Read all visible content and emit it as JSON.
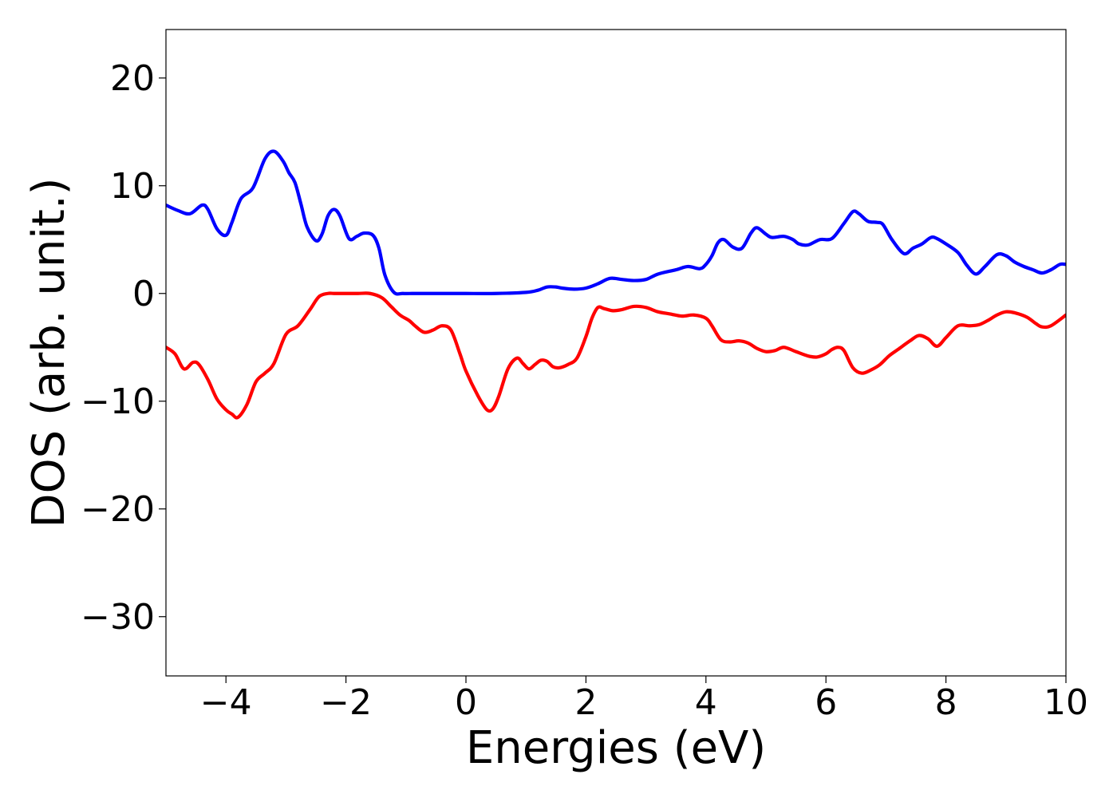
{
  "chart_data": {
    "type": "line",
    "xlabel": "Energies (eV)",
    "ylabel": "DOS (arb. unit.)",
    "xlim": [
      -5,
      10
    ],
    "ylim": [
      -35.5,
      24.5
    ],
    "xticks": [
      -4,
      -2,
      0,
      2,
      4,
      6,
      8,
      10
    ],
    "xtick_labels": [
      "−4",
      "−2",
      "0",
      "2",
      "4",
      "6",
      "8",
      "10"
    ],
    "yticks": [
      20,
      10,
      0,
      -10,
      -20,
      -30
    ],
    "ytick_labels": [
      "20",
      "10",
      "0",
      "−10",
      "−20",
      "−30"
    ],
    "grid": false,
    "legend": "none",
    "series": [
      {
        "color": "#0000ff",
        "x": [
          -5.0,
          -4.8,
          -4.6,
          -4.4,
          -4.3,
          -4.15,
          -4.0,
          -3.9,
          -3.75,
          -3.55,
          -3.35,
          -3.2,
          -3.05,
          -2.95,
          -2.85,
          -2.75,
          -2.65,
          -2.5,
          -2.4,
          -2.3,
          -2.2,
          -2.1,
          -1.95,
          -1.82,
          -1.7,
          -1.55,
          -1.45,
          -1.35,
          -1.2,
          -1.05,
          -0.9,
          -0.8,
          -0.65,
          -0.5,
          -0.35,
          -0.2,
          0.0,
          0.5,
          1.0,
          1.2,
          1.35,
          1.5,
          1.6,
          1.8,
          2.0,
          2.2,
          2.4,
          2.6,
          2.8,
          3.0,
          3.2,
          3.5,
          3.7,
          3.9,
          4.0,
          4.1,
          4.2,
          4.3,
          4.45,
          4.6,
          4.75,
          4.85,
          5.0,
          5.1,
          5.3,
          5.45,
          5.55,
          5.7,
          5.9,
          6.1,
          6.3,
          6.45,
          6.55,
          6.7,
          6.85,
          6.95,
          7.1,
          7.3,
          7.45,
          7.6,
          7.75,
          7.85,
          8.0,
          8.2,
          8.35,
          8.5,
          8.65,
          8.85,
          9.0,
          9.15,
          9.3,
          9.45,
          9.6,
          9.75,
          9.9,
          10.0
        ],
        "y": [
          8.2,
          7.7,
          7.4,
          8.2,
          7.8,
          6.0,
          5.4,
          6.6,
          8.8,
          9.8,
          12.5,
          13.2,
          12.3,
          11.2,
          10.3,
          8.3,
          6.2,
          4.9,
          5.5,
          7.2,
          7.8,
          7.2,
          5.1,
          5.3,
          5.6,
          5.4,
          4.2,
          1.7,
          0.1,
          0.0,
          0.0,
          0.0,
          0.0,
          0.0,
          0.0,
          0.0,
          0.0,
          0.0,
          0.1,
          0.3,
          0.6,
          0.6,
          0.5,
          0.4,
          0.5,
          0.9,
          1.4,
          1.3,
          1.2,
          1.3,
          1.8,
          2.2,
          2.5,
          2.3,
          2.7,
          3.5,
          4.7,
          5.0,
          4.3,
          4.2,
          5.6,
          6.1,
          5.5,
          5.2,
          5.3,
          5.0,
          4.6,
          4.5,
          5.0,
          5.1,
          6.5,
          7.6,
          7.4,
          6.7,
          6.6,
          6.4,
          5.0,
          3.7,
          4.2,
          4.6,
          5.2,
          5.1,
          4.6,
          3.8,
          2.6,
          1.8,
          2.5,
          3.6,
          3.5,
          2.9,
          2.5,
          2.2,
          1.9,
          2.2,
          2.7,
          2.7
        ]
      },
      {
        "color": "#ff0000",
        "x": [
          -5.0,
          -4.85,
          -4.7,
          -4.55,
          -4.45,
          -4.3,
          -4.15,
          -4.0,
          -3.9,
          -3.8,
          -3.65,
          -3.5,
          -3.35,
          -3.2,
          -3.0,
          -2.8,
          -2.6,
          -2.45,
          -2.3,
          -2.2,
          -2.0,
          -1.8,
          -1.6,
          -1.4,
          -1.25,
          -1.1,
          -0.95,
          -0.85,
          -0.7,
          -0.55,
          -0.4,
          -0.25,
          -0.1,
          0.0,
          0.2,
          0.35,
          0.45,
          0.55,
          0.7,
          0.85,
          0.95,
          1.05,
          1.15,
          1.25,
          1.35,
          1.45,
          1.55,
          1.7,
          1.85,
          2.0,
          2.1,
          2.2,
          2.3,
          2.45,
          2.6,
          2.8,
          3.0,
          3.2,
          3.4,
          3.6,
          3.8,
          4.0,
          4.1,
          4.25,
          4.4,
          4.55,
          4.7,
          4.85,
          5.0,
          5.15,
          5.3,
          5.5,
          5.7,
          5.85,
          6.0,
          6.1,
          6.2,
          6.3,
          6.45,
          6.6,
          6.75,
          6.9,
          7.05,
          7.2,
          7.4,
          7.55,
          7.7,
          7.85,
          8.0,
          8.2,
          8.4,
          8.55,
          8.7,
          8.85,
          9.0,
          9.15,
          9.35,
          9.5,
          9.6,
          9.75,
          10.0
        ],
        "y": [
          -5.0,
          -5.6,
          -7.0,
          -6.4,
          -6.6,
          -8.0,
          -9.8,
          -10.8,
          -11.2,
          -11.5,
          -10.3,
          -8.2,
          -7.4,
          -6.5,
          -3.8,
          -3.0,
          -1.5,
          -0.3,
          0.0,
          0.0,
          0.0,
          0.0,
          0.0,
          -0.4,
          -1.2,
          -2.0,
          -2.5,
          -3.0,
          -3.6,
          -3.4,
          -3.0,
          -3.4,
          -5.6,
          -7.2,
          -9.5,
          -10.8,
          -10.7,
          -9.5,
          -7.0,
          -6.0,
          -6.5,
          -7.0,
          -6.6,
          -6.2,
          -6.3,
          -6.8,
          -6.9,
          -6.6,
          -6.0,
          -4.0,
          -2.3,
          -1.3,
          -1.4,
          -1.6,
          -1.5,
          -1.2,
          -1.3,
          -1.7,
          -1.9,
          -2.1,
          -2.0,
          -2.3,
          -3.0,
          -4.3,
          -4.5,
          -4.4,
          -4.6,
          -5.1,
          -5.4,
          -5.3,
          -5.0,
          -5.4,
          -5.8,
          -5.9,
          -5.6,
          -5.2,
          -5.0,
          -5.3,
          -6.9,
          -7.4,
          -7.1,
          -6.6,
          -5.8,
          -5.2,
          -4.4,
          -3.9,
          -4.2,
          -4.9,
          -4.1,
          -3.0,
          -3.0,
          -2.9,
          -2.5,
          -2.0,
          -1.7,
          -1.8,
          -2.2,
          -2.8,
          -3.1,
          -3.0,
          -2.0
        ]
      }
    ]
  }
}
